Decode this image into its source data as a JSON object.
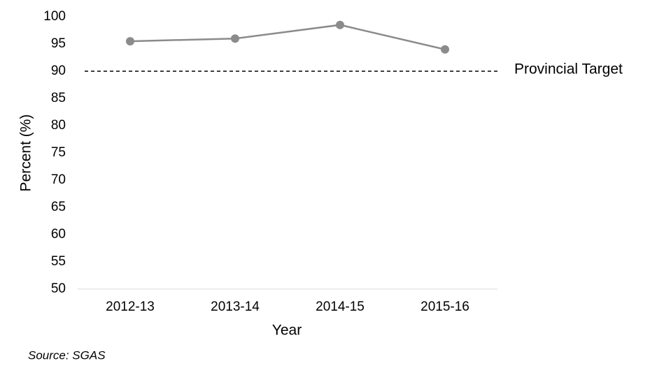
{
  "chart_data": {
    "type": "line",
    "categories": [
      "2012-13",
      "2013-14",
      "2014-15",
      "2015-16"
    ],
    "series": [
      {
        "name": "Percent",
        "color": "#8c8a8a",
        "values": [
          95.5,
          96.0,
          98.5,
          94.0
        ]
      }
    ],
    "ylim": [
      50,
      100
    ],
    "yticks": [
      50,
      55,
      60,
      65,
      70,
      75,
      80,
      85,
      90,
      95,
      100
    ],
    "xlabel": "Year",
    "ylabel": "Percent (%)",
    "target": {
      "value": 90,
      "label": "Provincial Target"
    },
    "source": "Source: SGAS"
  }
}
